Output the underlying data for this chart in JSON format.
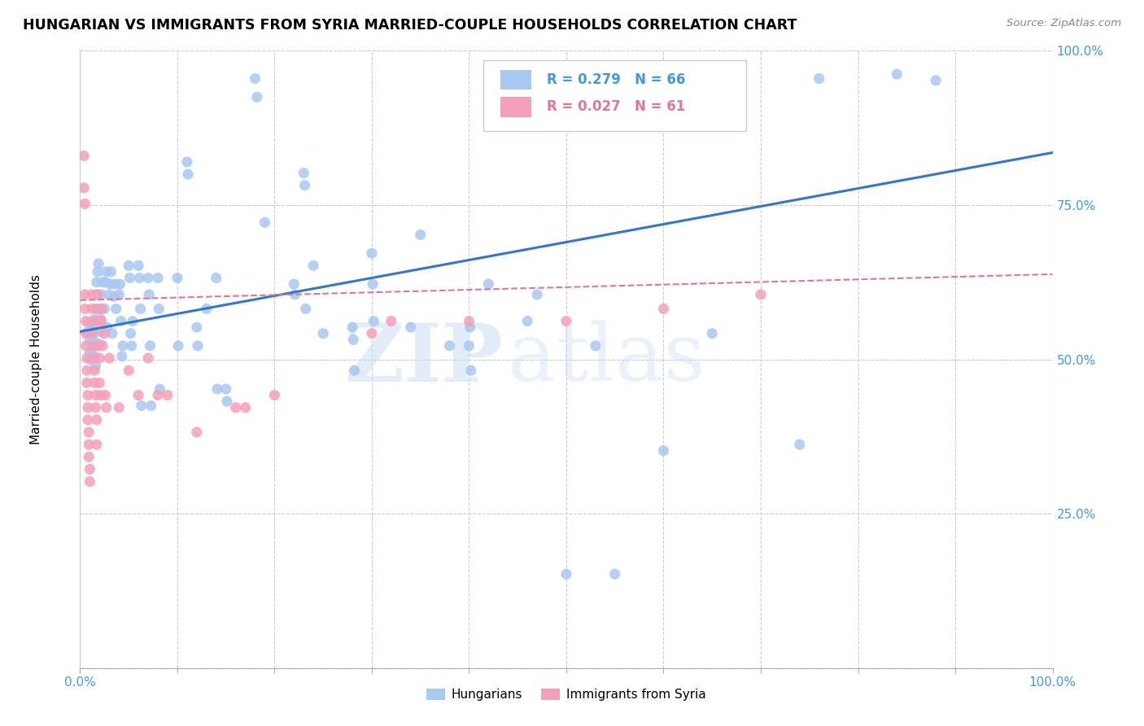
{
  "title": "HUNGARIAN VS IMMIGRANTS FROM SYRIA MARRIED-COUPLE HOUSEHOLDS CORRELATION CHART",
  "source": "Source: ZipAtlas.com",
  "ylabel": "Married-couple Households",
  "xlim": [
    0,
    1
  ],
  "ylim": [
    0,
    1
  ],
  "x_ticks": [
    0.0,
    0.1,
    0.2,
    0.3,
    0.4,
    0.5,
    0.6,
    0.7,
    0.8,
    0.9,
    1.0
  ],
  "y_ticks": [
    0.0,
    0.25,
    0.5,
    0.75,
    1.0
  ],
  "y_tick_labels": [
    "",
    "25.0%",
    "50.0%",
    "75.0%",
    "100.0%"
  ],
  "background_color": "#ffffff",
  "grid_color": "#cccccc",
  "watermark_zip": "ZIP",
  "watermark_atlas": "atlas",
  "blue_color": "#a8c8f0",
  "pink_color": "#f5a0b8",
  "blue_line_color": "#3377cc",
  "pink_line_color": "#dd7799",
  "tick_label_color": "#4499dd",
  "hung_line_x0": 0.0,
  "hung_line_y0": 0.545,
  "hung_line_x1": 1.0,
  "hung_line_y1": 0.835,
  "syria_line_x0": 0.0,
  "syria_line_y0": 0.596,
  "syria_line_x1": 1.0,
  "syria_line_y1": 0.638,
  "hungarian_points": [
    [
      0.008,
      0.545
    ],
    [
      0.009,
      0.56
    ],
    [
      0.01,
      0.53
    ],
    [
      0.01,
      0.51
    ],
    [
      0.01,
      0.5
    ],
    [
      0.011,
      0.545
    ],
    [
      0.012,
      0.515
    ],
    [
      0.013,
      0.555
    ],
    [
      0.014,
      0.545
    ],
    [
      0.014,
      0.53
    ],
    [
      0.015,
      0.565
    ],
    [
      0.015,
      0.505
    ],
    [
      0.016,
      0.49
    ],
    [
      0.016,
      0.582
    ],
    [
      0.017,
      0.605
    ],
    [
      0.017,
      0.625
    ],
    [
      0.018,
      0.642
    ],
    [
      0.019,
      0.655
    ],
    [
      0.02,
      0.545
    ],
    [
      0.02,
      0.525
    ],
    [
      0.021,
      0.565
    ],
    [
      0.022,
      0.605
    ],
    [
      0.022,
      0.582
    ],
    [
      0.023,
      0.625
    ],
    [
      0.025,
      0.582
    ],
    [
      0.026,
      0.625
    ],
    [
      0.027,
      0.642
    ],
    [
      0.028,
      0.552
    ],
    [
      0.03,
      0.605
    ],
    [
      0.031,
      0.622
    ],
    [
      0.032,
      0.642
    ],
    [
      0.033,
      0.542
    ],
    [
      0.035,
      0.602
    ],
    [
      0.036,
      0.622
    ],
    [
      0.037,
      0.582
    ],
    [
      0.04,
      0.605
    ],
    [
      0.041,
      0.622
    ],
    [
      0.042,
      0.562
    ],
    [
      0.043,
      0.505
    ],
    [
      0.044,
      0.522
    ],
    [
      0.05,
      0.652
    ],
    [
      0.051,
      0.632
    ],
    [
      0.052,
      0.542
    ],
    [
      0.053,
      0.522
    ],
    [
      0.054,
      0.562
    ],
    [
      0.06,
      0.652
    ],
    [
      0.061,
      0.632
    ],
    [
      0.062,
      0.582
    ],
    [
      0.063,
      0.425
    ],
    [
      0.07,
      0.632
    ],
    [
      0.071,
      0.605
    ],
    [
      0.072,
      0.522
    ],
    [
      0.073,
      0.425
    ],
    [
      0.08,
      0.632
    ],
    [
      0.081,
      0.582
    ],
    [
      0.082,
      0.452
    ],
    [
      0.1,
      0.632
    ],
    [
      0.101,
      0.522
    ],
    [
      0.11,
      0.82
    ],
    [
      0.111,
      0.8
    ],
    [
      0.12,
      0.552
    ],
    [
      0.121,
      0.522
    ],
    [
      0.13,
      0.582
    ],
    [
      0.14,
      0.632
    ],
    [
      0.141,
      0.452
    ],
    [
      0.15,
      0.452
    ],
    [
      0.151,
      0.432
    ],
    [
      0.18,
      0.955
    ],
    [
      0.182,
      0.925
    ],
    [
      0.19,
      0.722
    ],
    [
      0.22,
      0.622
    ],
    [
      0.221,
      0.605
    ],
    [
      0.23,
      0.802
    ],
    [
      0.231,
      0.782
    ],
    [
      0.232,
      0.582
    ],
    [
      0.24,
      0.652
    ],
    [
      0.25,
      0.542
    ],
    [
      0.28,
      0.552
    ],
    [
      0.281,
      0.532
    ],
    [
      0.282,
      0.482
    ],
    [
      0.3,
      0.672
    ],
    [
      0.301,
      0.622
    ],
    [
      0.302,
      0.562
    ],
    [
      0.34,
      0.552
    ],
    [
      0.35,
      0.702
    ],
    [
      0.38,
      0.522
    ],
    [
      0.4,
      0.522
    ],
    [
      0.401,
      0.552
    ],
    [
      0.402,
      0.482
    ],
    [
      0.42,
      0.622
    ],
    [
      0.46,
      0.562
    ],
    [
      0.47,
      0.605
    ],
    [
      0.5,
      0.152
    ],
    [
      0.53,
      0.522
    ],
    [
      0.55,
      0.152
    ],
    [
      0.6,
      0.352
    ],
    [
      0.65,
      0.542
    ],
    [
      0.74,
      0.362
    ],
    [
      0.76,
      0.955
    ],
    [
      0.84,
      0.962
    ],
    [
      0.88,
      0.952
    ]
  ],
  "syria_points": [
    [
      0.004,
      0.83
    ],
    [
      0.004,
      0.778
    ],
    [
      0.005,
      0.752
    ],
    [
      0.005,
      0.605
    ],
    [
      0.005,
      0.582
    ],
    [
      0.006,
      0.562
    ],
    [
      0.006,
      0.542
    ],
    [
      0.006,
      0.522
    ],
    [
      0.007,
      0.502
    ],
    [
      0.007,
      0.482
    ],
    [
      0.007,
      0.462
    ],
    [
      0.008,
      0.442
    ],
    [
      0.008,
      0.422
    ],
    [
      0.008,
      0.402
    ],
    [
      0.009,
      0.382
    ],
    [
      0.009,
      0.362
    ],
    [
      0.009,
      0.342
    ],
    [
      0.01,
      0.322
    ],
    [
      0.01,
      0.302
    ],
    [
      0.012,
      0.605
    ],
    [
      0.012,
      0.582
    ],
    [
      0.013,
      0.562
    ],
    [
      0.013,
      0.542
    ],
    [
      0.014,
      0.522
    ],
    [
      0.014,
      0.502
    ],
    [
      0.015,
      0.482
    ],
    [
      0.015,
      0.462
    ],
    [
      0.016,
      0.442
    ],
    [
      0.016,
      0.422
    ],
    [
      0.017,
      0.402
    ],
    [
      0.017,
      0.362
    ],
    [
      0.018,
      0.605
    ],
    [
      0.018,
      0.582
    ],
    [
      0.019,
      0.562
    ],
    [
      0.019,
      0.522
    ],
    [
      0.02,
      0.502
    ],
    [
      0.02,
      0.462
    ],
    [
      0.021,
      0.442
    ],
    [
      0.022,
      0.582
    ],
    [
      0.022,
      0.562
    ],
    [
      0.023,
      0.522
    ],
    [
      0.025,
      0.542
    ],
    [
      0.026,
      0.442
    ],
    [
      0.027,
      0.422
    ],
    [
      0.03,
      0.502
    ],
    [
      0.04,
      0.422
    ],
    [
      0.05,
      0.482
    ],
    [
      0.06,
      0.442
    ],
    [
      0.07,
      0.502
    ],
    [
      0.08,
      0.442
    ],
    [
      0.09,
      0.442
    ],
    [
      0.12,
      0.382
    ],
    [
      0.16,
      0.422
    ],
    [
      0.17,
      0.422
    ],
    [
      0.2,
      0.442
    ],
    [
      0.3,
      0.542
    ],
    [
      0.32,
      0.562
    ],
    [
      0.4,
      0.562
    ],
    [
      0.5,
      0.562
    ],
    [
      0.6,
      0.582
    ],
    [
      0.7,
      0.605
    ]
  ]
}
